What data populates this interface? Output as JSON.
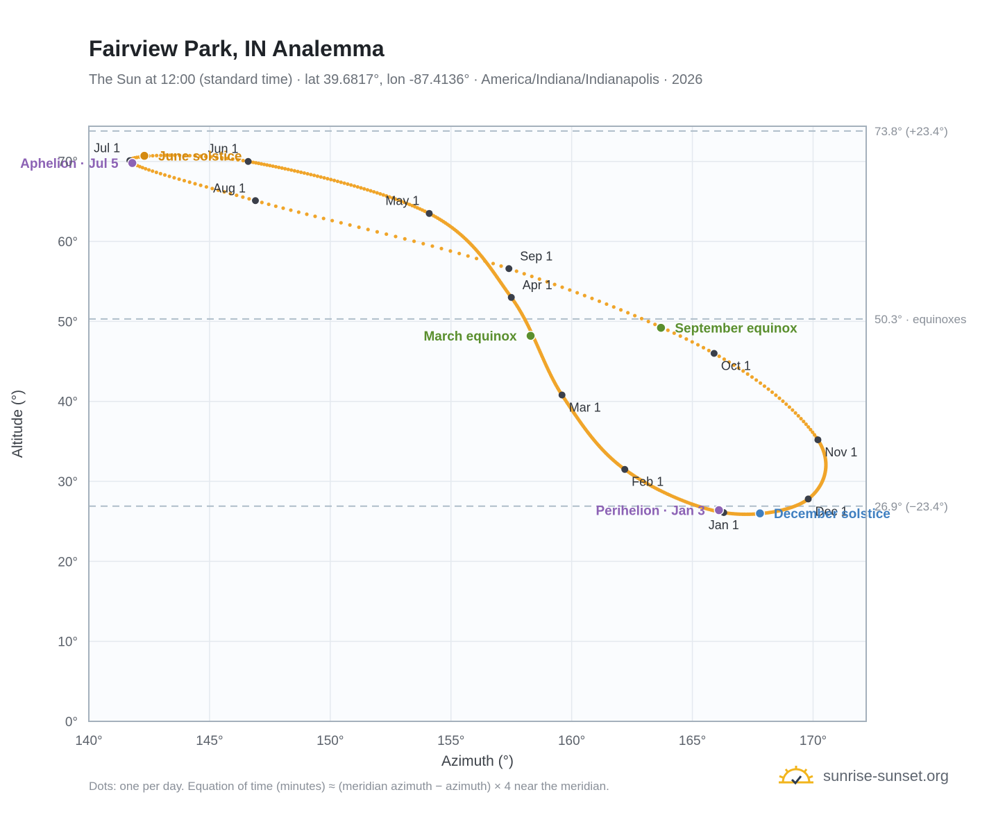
{
  "header": {
    "title": "Fairview Park, IN Analemma",
    "subtitle": "The Sun at 12:00 (standard time) · lat 39.6817°, lon -87.4136° · America/Indiana/Indianapolis · 2026"
  },
  "footer": {
    "note": "Dots: one per day. Equation of time (minutes) ≈ (meridian azimuth − azimuth) × 4 near the meridian.",
    "brand": "sunrise-sunset.org",
    "brand_icon": "sun-icon"
  },
  "colors": {
    "curve": "#f0a52a",
    "month_dot": "#3a3f4a",
    "equinox": "#5a8f2e",
    "june_solstice": "#d48a10",
    "december_solstice": "#3f7fc0",
    "perihelion_aphelion": "#8c62b5",
    "reference_line": "#aebdc9",
    "plot_bg": "#fafcfe",
    "grid": "#e4e9ef",
    "frame": "#a4b0bc"
  },
  "chart_data": {
    "type": "scatter",
    "xlabel": "Azimuth (°)",
    "ylabel": "Altitude (°)",
    "xlim": [
      140,
      172.2
    ],
    "ylim": [
      0,
      74.4
    ],
    "xticks": [
      {
        "value": 140,
        "label": "140°"
      },
      {
        "value": 145,
        "label": "145°"
      },
      {
        "value": 150,
        "label": "150°"
      },
      {
        "value": 155,
        "label": "155°"
      },
      {
        "value": 160,
        "label": "160°"
      },
      {
        "value": 165,
        "label": "165°"
      },
      {
        "value": 170,
        "label": "170°"
      }
    ],
    "yticks": [
      {
        "value": 0,
        "label": "0°"
      },
      {
        "value": 10,
        "label": "10°"
      },
      {
        "value": 20,
        "label": "20°"
      },
      {
        "value": 30,
        "label": "30°"
      },
      {
        "value": 40,
        "label": "40°"
      },
      {
        "value": 50,
        "label": "50°"
      },
      {
        "value": 60,
        "label": "60°"
      },
      {
        "value": 70,
        "label": "70°"
      }
    ],
    "grid": true,
    "reference_lines": [
      {
        "altitude": 73.8,
        "label": "73.8° (+23.4°)"
      },
      {
        "altitude": 50.3,
        "label": "50.3° · equinoxes"
      },
      {
        "altitude": 26.9,
        "label": "26.9° (−23.4°)"
      }
    ],
    "path": [
      {
        "date": "Jan 1",
        "x": 166.3,
        "y": 26.1
      },
      {
        "date": "Feb 1",
        "x": 162.2,
        "y": 31.5
      },
      {
        "date": "Mar 1",
        "x": 159.6,
        "y": 40.8
      },
      {
        "date": "Apr 1",
        "x": 157.5,
        "y": 53.0
      },
      {
        "date": "May 1",
        "x": 154.1,
        "y": 63.5
      },
      {
        "date": "Jun 1",
        "x": 146.6,
        "y": 70.0
      },
      {
        "date": "Jul 1",
        "x": 141.7,
        "y": 70.1
      },
      {
        "date": "Aug 1",
        "x": 146.9,
        "y": 65.1
      },
      {
        "date": "Sep 1",
        "x": 157.4,
        "y": 56.6
      },
      {
        "date": "Oct 1",
        "x": 165.9,
        "y": 46.0
      },
      {
        "date": "Nov 1",
        "x": 170.2,
        "y": 35.2
      },
      {
        "date": "Dec 1",
        "x": 169.8,
        "y": 27.8
      }
    ],
    "month_markers": [
      {
        "label": "Jan 1",
        "x": 166.3,
        "y": 26.1,
        "side": "below"
      },
      {
        "label": "Feb 1",
        "x": 162.2,
        "y": 31.5,
        "side": "below-right"
      },
      {
        "label": "Mar 1",
        "x": 159.6,
        "y": 40.8,
        "side": "below-right"
      },
      {
        "label": "Apr 1",
        "x": 157.5,
        "y": 53.0,
        "side": "above-right"
      },
      {
        "label": "May 1",
        "x": 154.1,
        "y": 63.5,
        "side": "above-left"
      },
      {
        "label": "Jun 1",
        "x": 146.6,
        "y": 70.0,
        "side": "above-left"
      },
      {
        "label": "Jul 1",
        "x": 141.7,
        "y": 70.1,
        "side": "above-left"
      },
      {
        "label": "Aug 1",
        "x": 146.9,
        "y": 65.1,
        "side": "above-left"
      },
      {
        "label": "Sep 1",
        "x": 157.4,
        "y": 56.6,
        "side": "above-right"
      },
      {
        "label": "Oct 1",
        "x": 165.9,
        "y": 46.0,
        "side": "below-right"
      },
      {
        "label": "Nov 1",
        "x": 170.2,
        "y": 35.2,
        "side": "below-right"
      },
      {
        "label": "Dec 1",
        "x": 169.8,
        "y": 27.8,
        "side": "below-right"
      }
    ],
    "events": [
      {
        "label": "June solstice",
        "x": 142.3,
        "y": 70.7,
        "kind": "june_solstice",
        "side": "right"
      },
      {
        "label": "Aphelion · Jul 5",
        "x": 141.8,
        "y": 69.8,
        "kind": "perihelion_aphelion",
        "side": "left"
      },
      {
        "label": "March equinox",
        "x": 158.3,
        "y": 48.2,
        "kind": "equinox",
        "side": "left"
      },
      {
        "label": "September equinox",
        "x": 163.7,
        "y": 49.2,
        "kind": "equinox",
        "side": "right"
      },
      {
        "label": "Perihelion · Jan 3",
        "x": 166.1,
        "y": 26.4,
        "kind": "perihelion_aphelion",
        "side": "left"
      },
      {
        "label": "December solstice",
        "x": 167.8,
        "y": 26.0,
        "kind": "december_solstice",
        "side": "right"
      }
    ]
  }
}
